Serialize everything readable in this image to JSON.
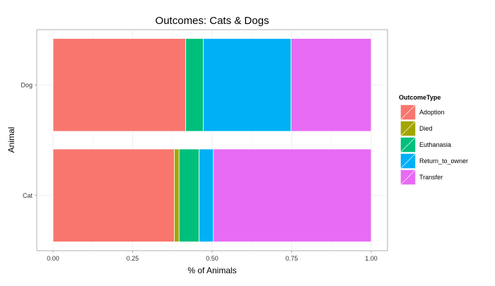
{
  "chart_data": {
    "type": "bar",
    "orientation": "horizontal",
    "stacked": true,
    "title": "Outcomes: Cats & Dogs",
    "xlabel": "% of Animals",
    "ylabel": "Animal",
    "xlim": [
      0,
      1
    ],
    "x_ticks": [
      "0.00",
      "0.25",
      "0.50",
      "0.75",
      "1.00"
    ],
    "categories": [
      "Dog",
      "Cat"
    ],
    "grid": true,
    "legend_title": "OutcomeType",
    "legend_position": "right",
    "series": [
      {
        "name": "Adoption",
        "color": "#F8766D",
        "values": [
          0.417,
          0.381
        ]
      },
      {
        "name": "Died",
        "color": "#A3A500",
        "values": [
          0.0,
          0.015
        ]
      },
      {
        "name": "Euthanasia",
        "color": "#00BF7D",
        "values": [
          0.055,
          0.063
        ]
      },
      {
        "name": "Return_to_owner",
        "color": "#00B0F6",
        "values": [
          0.276,
          0.045
        ]
      },
      {
        "name": "Transfer",
        "color": "#E76BF3",
        "values": [
          0.252,
          0.496
        ]
      }
    ]
  }
}
